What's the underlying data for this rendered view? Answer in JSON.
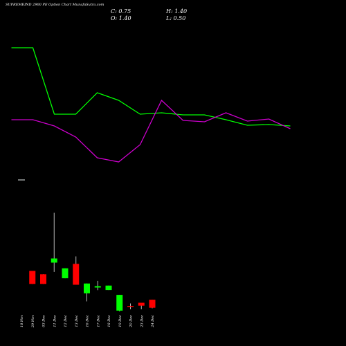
{
  "header": {
    "title": "SUPREMEIND 2900  PE Option  Chart MunafaSutra.com",
    "close": "C: 0.75",
    "open": "O: 1.40",
    "high": "H: 1.40",
    "low": "L: 0.50"
  },
  "chart_data": {
    "type": "candlestick",
    "categories": [
      "18 Nov",
      "29 Nov",
      "03 Dec",
      "11 Dec",
      "12 Dec",
      "13 Dec",
      "16 Dec",
      "17 Dec",
      "18 Dec",
      "19 Dec",
      "20 Dec",
      "23 Dec",
      "24 Dec"
    ],
    "candles": [
      {
        "open": null,
        "high": null,
        "low": null,
        "close": null
      },
      {
        "open": 1.4,
        "high": 1.4,
        "low": 0.46,
        "close": 0.46,
        "color": "red"
      },
      {
        "open": 1.16,
        "high": 1.16,
        "low": 0.46,
        "close": 0.46,
        "color": "red"
      },
      {
        "open": 2.0,
        "high": 5.6,
        "low": 1.33,
        "close": 2.3,
        "color": "green"
      },
      {
        "open": 0.87,
        "high": 1.59,
        "low": 0.87,
        "close": 1.59,
        "color": "green"
      },
      {
        "open": 1.91,
        "high": 2.45,
        "low": 0.4,
        "close": 0.4,
        "color": "red"
      },
      {
        "open": -0.22,
        "high": 0.49,
        "low": -0.8,
        "close": 0.49,
        "color": "green"
      },
      {
        "open": 0.2,
        "high": 0.68,
        "low": 0.01,
        "close": 0.3,
        "color": "green"
      },
      {
        "open": 0.02,
        "high": 0.34,
        "low": 0.02,
        "close": 0.34,
        "color": "green"
      },
      {
        "open": -1.47,
        "high": -0.33,
        "low": -1.52,
        "close": -0.33,
        "color": "green"
      },
      {
        "open": -1.13,
        "high": -0.95,
        "low": -1.37,
        "close": -1.13,
        "color": "red"
      },
      {
        "open": -0.9,
        "high": -0.9,
        "low": -1.37,
        "close": -1.11,
        "color": "red"
      },
      {
        "open": -0.68,
        "high": -0.68,
        "low": -1.3,
        "close": -1.26,
        "color": "red"
      }
    ],
    "green_line": [
      {
        "x": -0.5,
        "y": 69
      },
      {
        "x": 0.5,
        "y": 69
      },
      {
        "x": 1.5,
        "y": 165
      },
      {
        "x": 2.5,
        "y": 165
      },
      {
        "x": 3.5,
        "y": 134
      },
      {
        "x": 4.5,
        "y": 145
      },
      {
        "x": 5.5,
        "y": 165
      },
      {
        "x": 6.5,
        "y": 163
      },
      {
        "x": 7.5,
        "y": 166
      },
      {
        "x": 8.5,
        "y": 166
      },
      {
        "x": 9.5,
        "y": 173
      },
      {
        "x": 10.5,
        "y": 181
      },
      {
        "x": 11.5,
        "y": 180
      },
      {
        "x": 12.5,
        "y": 182
      }
    ],
    "magenta_line": [
      {
        "x": -0.5,
        "y": 173
      },
      {
        "x": 0.5,
        "y": 173
      },
      {
        "x": 1.5,
        "y": 182
      },
      {
        "x": 2.5,
        "y": 198
      },
      {
        "x": 3.5,
        "y": 228
      },
      {
        "x": 4.5,
        "y": 234
      },
      {
        "x": 5.5,
        "y": 209
      },
      {
        "x": 6.5,
        "y": 145
      },
      {
        "x": 7.5,
        "y": 174
      },
      {
        "x": 8.5,
        "y": 176
      },
      {
        "x": 9.5,
        "y": 163
      },
      {
        "x": 10.5,
        "y": 175
      },
      {
        "x": 11.5,
        "y": 172
      },
      {
        "x": 12.5,
        "y": 186
      }
    ],
    "colors": {
      "up": "#00ff00",
      "down": "#ff0000",
      "wick": "#bbbbbb",
      "green_line": "#00ff00",
      "magenta_line": "#cc00cc",
      "background": "#000000",
      "label": "#ffffff"
    }
  }
}
